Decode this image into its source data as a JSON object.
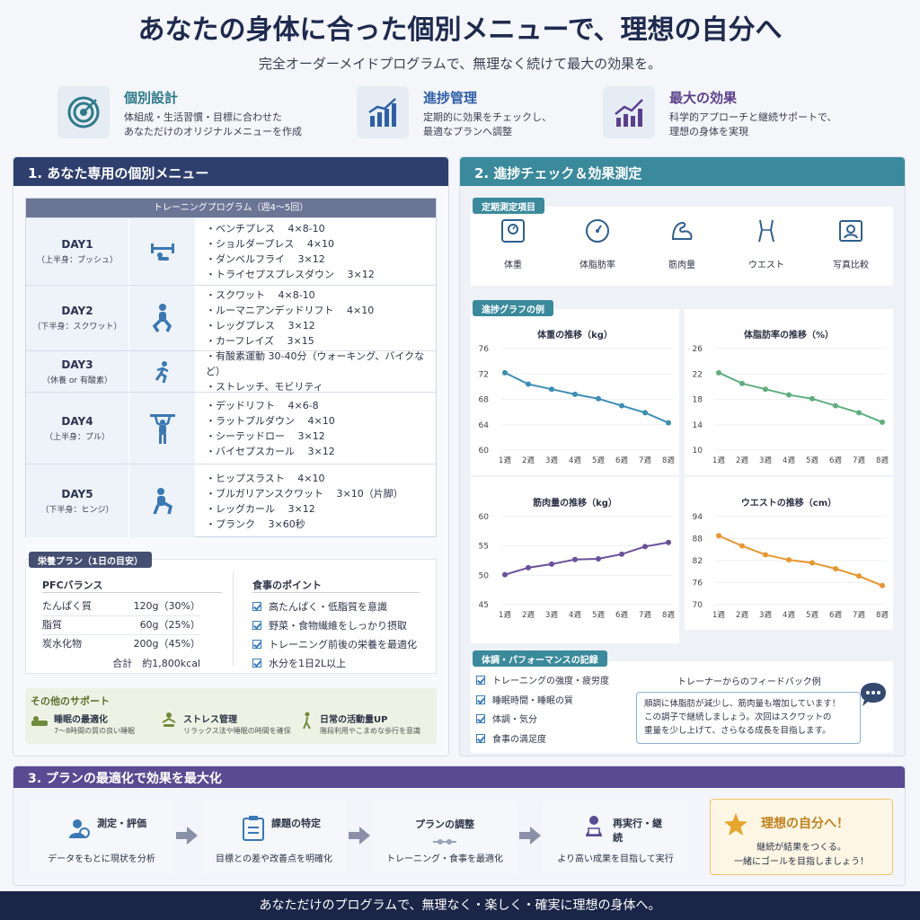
{
  "header": {
    "title": "あなたの身体に合った個別メニューで、理想の自分へ",
    "subtitle": "完全オーダーメイドプログラムで、無理なく続けて最大の効果を。"
  },
  "features": [
    {
      "icon": "target-icon",
      "title": "個別設計",
      "line1": "体組成・生活習慣・目標に合わせた",
      "line2": "あなただけのオリジナルメニューを作成",
      "color": "#2d7a8a"
    },
    {
      "icon": "bar-chart-up-icon",
      "title": "進捗管理",
      "line1": "定期的に効果をチェックし、",
      "line2": "最適なプランへ調整",
      "color": "#2f5fa8"
    },
    {
      "icon": "growth-chart-icon",
      "title": "最大の効果",
      "line1": "科学的アプローチと継続サポートで、",
      "line2": "理想の身体を実現",
      "color": "#5b3f8f"
    }
  ],
  "menu_panel": {
    "heading": "1. あなた専用の個別メニュー",
    "table_header": "トレーニングプログラム（週4〜5回）",
    "days": [
      {
        "name": "DAY1",
        "sub": "（上半身：プッシュ）",
        "icon": "bench-press-icon",
        "exercises": [
          "・ベンチプレス　 4×8-10",
          "・ショルダープレス　 4×10",
          "・ダンベルフライ　 3×12",
          "・トライセプスプレスダウン　 3×12"
        ]
      },
      {
        "name": "DAY2",
        "sub": "（下半身：スクワット）",
        "icon": "squat-icon",
        "exercises": [
          "・スクワット　 4×8-10",
          "・ルーマニアンデッドリフト　 4×10",
          "・レッグプレス　 3×12",
          "・カーフレイズ　 3×15"
        ]
      },
      {
        "name": "DAY3",
        "sub": "（休養 or 有酸素）",
        "icon": "running-icon",
        "exercises": [
          "・有酸素運動 30-40分（ウォーキング、バイクなど）",
          "・ストレッチ、モビリティ"
        ]
      },
      {
        "name": "DAY4",
        "sub": "（上半身：プル）",
        "icon": "pull-up-icon",
        "exercises": [
          "・デッドリフト　 4×6-8",
          "・ラットプルダウン　 4×10",
          "・シーテッドロー　 3×12",
          "・バイセプスカール　 3×12"
        ]
      },
      {
        "name": "DAY5",
        "sub": "（下半身：ヒンジ）",
        "icon": "hip-thrust-icon",
        "exercises": [
          "・ヒップスラスト　 4×10",
          "・ブルガリアンスクワット　 3×10（片脚）",
          "・レッグカール　 3×12",
          "・プランク　 3×60秒"
        ]
      }
    ],
    "nutrition": {
      "tag": "栄養プラン（1日の目安）",
      "pfc_title": "PFCバランス",
      "items": [
        {
          "label": "たんぱく質",
          "value": "120g（30%）"
        },
        {
          "label": "脂質",
          "value": "60g（25%）"
        },
        {
          "label": "炭水化物",
          "value": "200g（45%）"
        }
      ],
      "total": "合計　約1,800kcal",
      "points_title": "食事のポイント",
      "points": [
        "高たんぱく・低脂質を意識",
        "野菜・食物繊維をしっかり摂取",
        "トレーニング前後の栄養を最適化",
        "水分を1日2L以上"
      ]
    },
    "support": {
      "title": "その他のサポート",
      "items": [
        {
          "icon": "sleep-icon",
          "title": "睡眠の最適化",
          "desc": "7〜8時間の質の良い睡眠"
        },
        {
          "icon": "relax-icon",
          "title": "ストレス管理",
          "desc": "リラックス法や睡眠の時間を確保"
        },
        {
          "icon": "walking-icon",
          "title": "日常の活動量UP",
          "desc": "階段利用やこまめな歩行を意識"
        }
      ]
    }
  },
  "progress_panel": {
    "heading": "2. 進捗チェック＆効果測定",
    "measure_tag": "定期測定項目",
    "measures": [
      {
        "icon": "scale-icon",
        "label": "体重"
      },
      {
        "icon": "gauge-icon",
        "label": "体脂肪率"
      },
      {
        "icon": "muscle-arm-icon",
        "label": "筋肉量"
      },
      {
        "icon": "waist-icon",
        "label": "ウエスト"
      },
      {
        "icon": "photo-id-icon",
        "label": "写真比較"
      }
    ],
    "graph_tag": "進捗グラフの例",
    "record_tag": "体調・パフォーマンスの記録",
    "records": [
      "トレーニングの強度・疲労度",
      "睡眠時間・睡眠の質",
      "体調・気分",
      "食事の満足度"
    ],
    "feedback_title": "トレーナーからのフィードバック例",
    "feedback": [
      "順調に体脂肪が減少し、筋肉量も増加しています！",
      "この調子で継続しましょう。次回はスクワットの",
      "重量を少し上げて、さらなる成長を目指します。"
    ]
  },
  "chart_data": [
    {
      "type": "line",
      "title": "体重の推移（kg）",
      "categories": [
        "1週",
        "2週",
        "3週",
        "4週",
        "5週",
        "6週",
        "7週",
        "8週"
      ],
      "values": [
        72.2,
        70.4,
        69.6,
        68.8,
        68.1,
        67.0,
        65.9,
        64.3
      ],
      "ylim": [
        60,
        76
      ],
      "yticks": [
        "60",
        "64",
        "68",
        "72",
        "76"
      ],
      "color": "#3b8db5"
    },
    {
      "type": "line",
      "title": "体脂肪率の推移（%）",
      "categories": [
        "1週",
        "2週",
        "3週",
        "4週",
        "5週",
        "6週",
        "7週",
        "8週"
      ],
      "values": [
        22.2,
        20.5,
        19.6,
        18.7,
        18.1,
        17.0,
        15.9,
        14.4
      ],
      "ylim": [
        10,
        26
      ],
      "yticks": [
        "10",
        "14",
        "18",
        "22",
        "26"
      ],
      "color": "#5fae7e"
    },
    {
      "type": "line",
      "title": "筋肉量の推移（kg）",
      "categories": [
        "1週",
        "2週",
        "3週",
        "4週",
        "5週",
        "6週",
        "7週",
        "8週"
      ],
      "values": [
        50.1,
        51.3,
        51.9,
        52.7,
        52.8,
        53.6,
        54.9,
        55.6
      ],
      "ylim": [
        45,
        60
      ],
      "yticks": [
        "45",
        "50",
        "55",
        "60"
      ],
      "color": "#6a4f9b"
    },
    {
      "type": "line",
      "title": "ウエストの推移（cm）",
      "categories": [
        "1週",
        "2週",
        "3週",
        "4週",
        "5週",
        "6週",
        "7週",
        "8週"
      ],
      "values": [
        88.8,
        86.0,
        83.6,
        82.2,
        81.4,
        79.8,
        77.8,
        75.2
      ],
      "ylim": [
        70,
        94
      ],
      "yticks": [
        "70",
        "76",
        "82",
        "88",
        "94"
      ],
      "color": "#e8962f"
    }
  ],
  "optimize_panel": {
    "heading": "3. プランの最適化で効果を最大化",
    "steps": [
      {
        "icon": "analysis-icon",
        "title": "測定・評価",
        "desc": "データをもとに現状を分析"
      },
      {
        "icon": "clipboard-icon",
        "title": "課題の特定",
        "desc": "目標との差や改善点を明確化"
      },
      {
        "icon": "adjust-icon",
        "title": "プランの調整",
        "desc": "トレーニング・食事を最適化"
      },
      {
        "icon": "presentation-icon",
        "title": "再実行・継続",
        "desc": "より高い成果を目指して実行"
      }
    ],
    "goal": {
      "icon": "star-icon",
      "title": "理想の自分へ！",
      "line1": "継続が結果をつくる。",
      "line2": "一緒にゴールを目指しましょう！"
    }
  },
  "footer": "あなただけのプログラムで、無理なく・楽しく・確実に理想の身体へ。"
}
